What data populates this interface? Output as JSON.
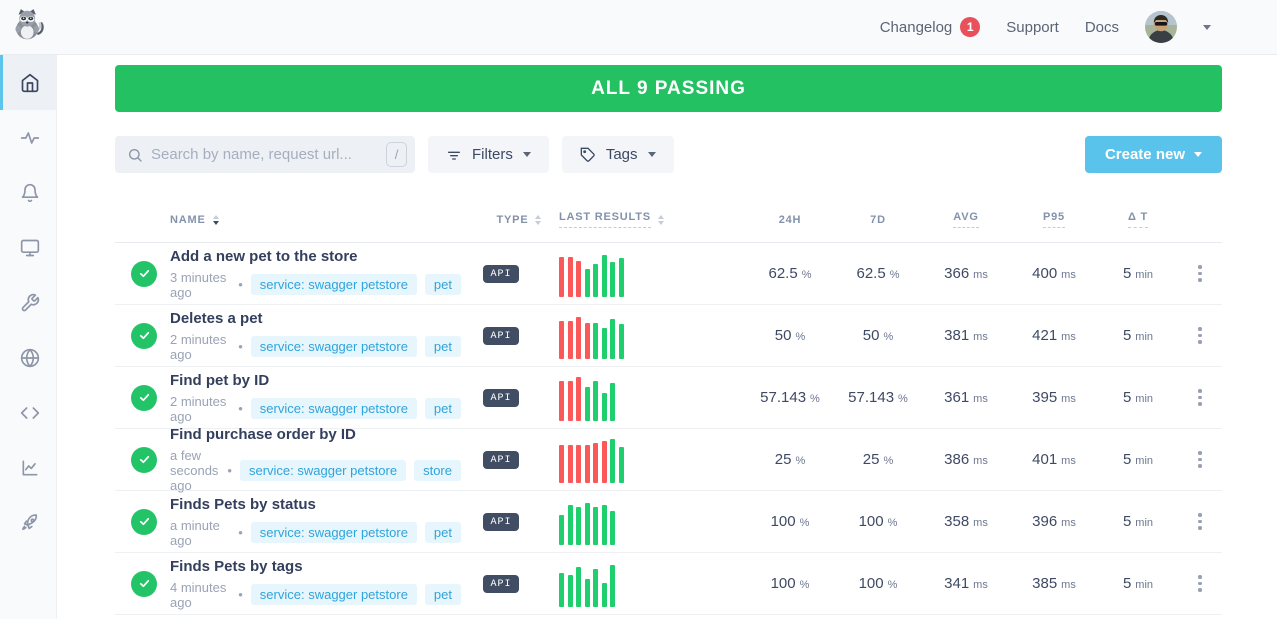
{
  "topbar": {
    "changelog_label": "Changelog",
    "changelog_badge": "1",
    "support_label": "Support",
    "docs_label": "Docs"
  },
  "sidebar": {
    "items": [
      {
        "name": "home",
        "active": true
      },
      {
        "name": "activity",
        "active": false
      },
      {
        "name": "bell",
        "active": false
      },
      {
        "name": "monitor",
        "active": false
      },
      {
        "name": "wrench",
        "active": false
      },
      {
        "name": "globe",
        "active": false
      },
      {
        "name": "code",
        "active": false
      },
      {
        "name": "chart",
        "active": false
      },
      {
        "name": "rocket",
        "active": false
      }
    ]
  },
  "banner": {
    "text": "ALL 9 PASSING"
  },
  "controls": {
    "search_placeholder": "Search by name, request url...",
    "search_shortcut": "/",
    "filters_label": "Filters",
    "tags_label": "Tags",
    "create_label": "Create new"
  },
  "colors": {
    "banner_green": "#24c163",
    "pass_green": "#1fce6d",
    "fail_red": "#fb5959",
    "accent_blue": "#5ac3eb",
    "badge_red": "#e8505b",
    "tag_blue": "#2fa4db"
  },
  "table": {
    "headers": {
      "name": "NAME",
      "type": "TYPE",
      "results": "LAST RESULTS",
      "m": [
        "24H",
        "7D",
        "AVG",
        "P95",
        "Δ T"
      ]
    },
    "rows": [
      {
        "name": "Add a new pet to the store",
        "time": "3 minutes ago",
        "tags": [
          "service: swagger petstore",
          "pet"
        ],
        "type": "API",
        "bars": [
          [
            "r",
            40
          ],
          [
            "r",
            40
          ],
          [
            "r",
            36
          ],
          [
            "g",
            28
          ],
          [
            "g",
            33
          ],
          [
            "g",
            42
          ],
          [
            "g",
            35
          ],
          [
            "g",
            39
          ]
        ],
        "metrics": [
          [
            "62.5",
            "%"
          ],
          [
            "62.5",
            "%"
          ],
          [
            "366",
            "ms"
          ],
          [
            "400",
            "ms"
          ],
          [
            "5",
            "min"
          ]
        ]
      },
      {
        "name": "Deletes a pet",
        "time": "2 minutes ago",
        "tags": [
          "service: swagger petstore",
          "pet"
        ],
        "type": "API",
        "bars": [
          [
            "r",
            38
          ],
          [
            "r",
            38
          ],
          [
            "r",
            42
          ],
          [
            "r",
            36
          ],
          [
            "g",
            36
          ],
          [
            "g",
            31
          ],
          [
            "g",
            40
          ],
          [
            "g",
            35
          ]
        ],
        "metrics": [
          [
            "50",
            "%"
          ],
          [
            "50",
            "%"
          ],
          [
            "381",
            "ms"
          ],
          [
            "421",
            "ms"
          ],
          [
            "5",
            "min"
          ]
        ]
      },
      {
        "name": "Find pet by ID",
        "time": "2 minutes ago",
        "tags": [
          "service: swagger petstore",
          "pet"
        ],
        "type": "API",
        "bars": [
          [
            "r",
            40
          ],
          [
            "r",
            40
          ],
          [
            "r",
            44
          ],
          [
            "g",
            34
          ],
          [
            "g",
            40
          ],
          [
            "g",
            28
          ],
          [
            "g",
            38
          ]
        ],
        "metrics": [
          [
            "57.143",
            "%"
          ],
          [
            "57.143",
            "%"
          ],
          [
            "361",
            "ms"
          ],
          [
            "395",
            "ms"
          ],
          [
            "5",
            "min"
          ]
        ]
      },
      {
        "name": "Find purchase order by ID",
        "time": "a few seconds ago",
        "tags": [
          "service: swagger petstore",
          "store"
        ],
        "type": "API",
        "bars": [
          [
            "r",
            38
          ],
          [
            "r",
            38
          ],
          [
            "r",
            38
          ],
          [
            "r",
            38
          ],
          [
            "r",
            40
          ],
          [
            "r",
            42
          ],
          [
            "g",
            44
          ],
          [
            "g",
            36
          ]
        ],
        "metrics": [
          [
            "25",
            "%"
          ],
          [
            "25",
            "%"
          ],
          [
            "386",
            "ms"
          ],
          [
            "401",
            "ms"
          ],
          [
            "5",
            "min"
          ]
        ]
      },
      {
        "name": "Finds Pets by status",
        "time": "a minute ago",
        "tags": [
          "service: swagger petstore",
          "pet"
        ],
        "type": "API",
        "bars": [
          [
            "g",
            30
          ],
          [
            "g",
            40
          ],
          [
            "g",
            38
          ],
          [
            "g",
            42
          ],
          [
            "g",
            38
          ],
          [
            "g",
            40
          ],
          [
            "g",
            34
          ]
        ],
        "metrics": [
          [
            "100",
            "%"
          ],
          [
            "100",
            "%"
          ],
          [
            "358",
            "ms"
          ],
          [
            "396",
            "ms"
          ],
          [
            "5",
            "min"
          ]
        ]
      },
      {
        "name": "Finds Pets by tags",
        "time": "4 minutes ago",
        "tags": [
          "service: swagger petstore",
          "pet"
        ],
        "type": "API",
        "bars": [
          [
            "g",
            34
          ],
          [
            "g",
            32
          ],
          [
            "g",
            40
          ],
          [
            "g",
            28
          ],
          [
            "g",
            38
          ],
          [
            "g",
            24
          ],
          [
            "g",
            42
          ]
        ],
        "metrics": [
          [
            "100",
            "%"
          ],
          [
            "100",
            "%"
          ],
          [
            "341",
            "ms"
          ],
          [
            "385",
            "ms"
          ],
          [
            "5",
            "min"
          ]
        ]
      }
    ]
  }
}
